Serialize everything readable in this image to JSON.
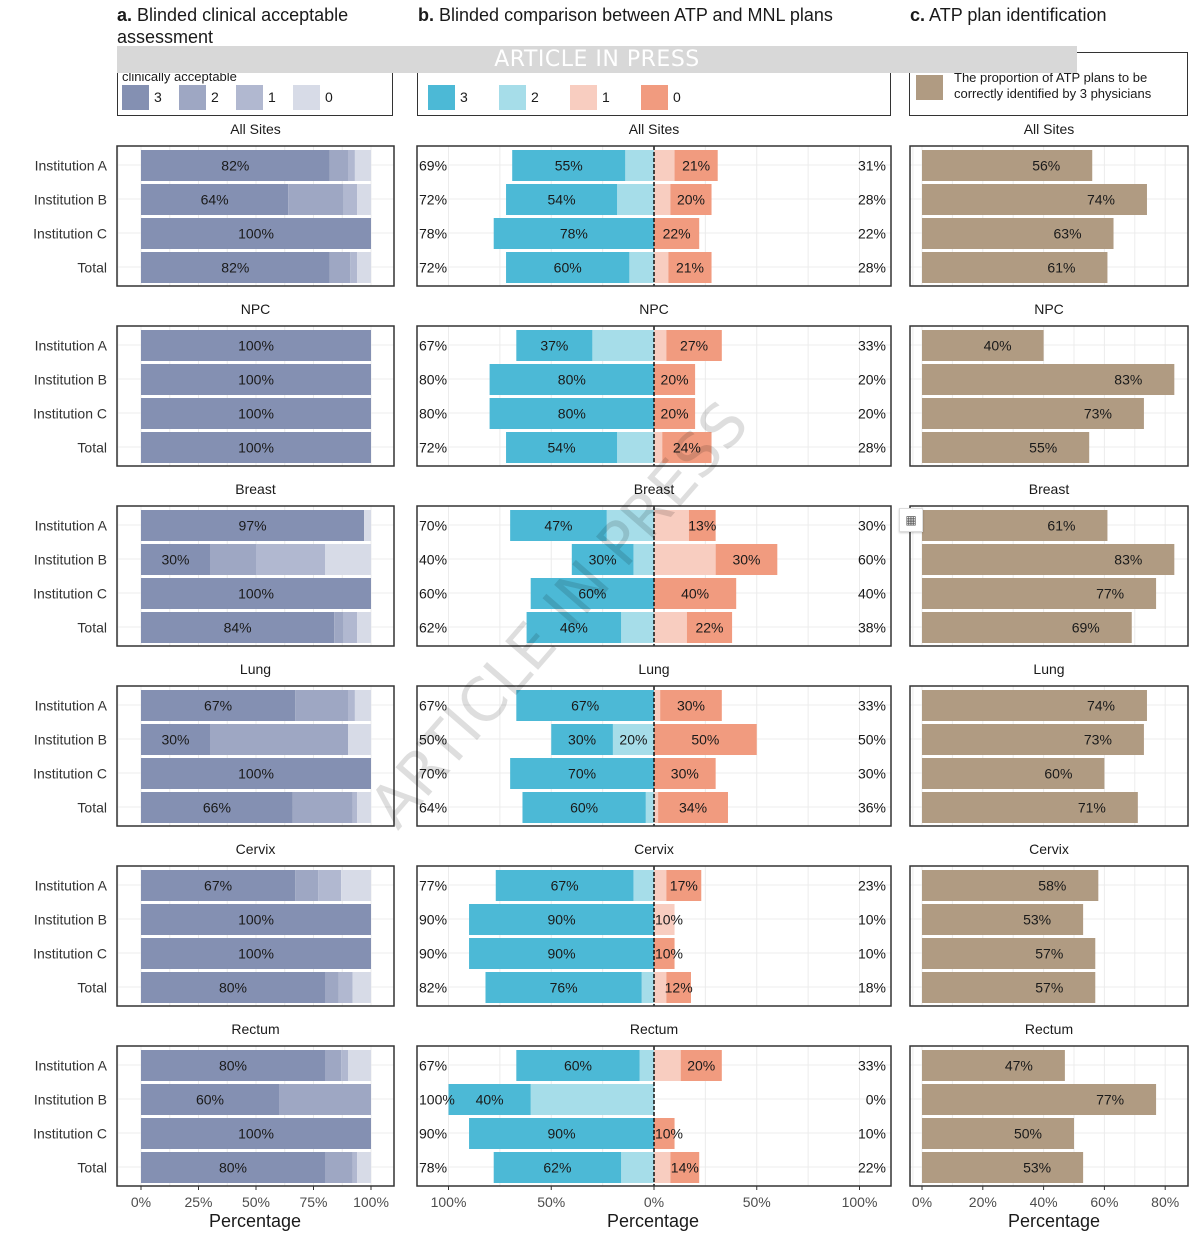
{
  "banner": "ARTICLE IN PRESS",
  "watermark": "ARTICLE IN PRESS",
  "panels": {
    "a": {
      "letter": "a.",
      "title": "Blinded clinical acceptable assessment",
      "legend_title": "clinically acceptable",
      "legend": [
        {
          "label": "3",
          "color": "#8490b2"
        },
        {
          "label": "2",
          "color": "#9ea7c3"
        },
        {
          "label": "1",
          "color": "#b1b8d0"
        },
        {
          "label": "0",
          "color": "#d7dbe7"
        }
      ],
      "xlabel": "Percentage",
      "ticks": [
        "0%",
        "25%",
        "50%",
        "75%",
        "100%"
      ]
    },
    "b": {
      "letter": "b.",
      "title": "Blinded comparison between ATP and MNL plans",
      "legend": [
        {
          "label": "3",
          "color": "#4cb9d6"
        },
        {
          "label": "2",
          "color": "#a6dde9"
        },
        {
          "label": "1",
          "color": "#f8cdc0"
        },
        {
          "label": "0",
          "color": "#f19b7f"
        }
      ],
      "xlabel": "Percentage",
      "ticks": [
        "100%",
        "50%",
        "0%",
        "50%",
        "100%"
      ]
    },
    "c": {
      "letter": "c.",
      "title": "ATP plan identification",
      "legend": [
        {
          "label": "The proportion of ATP plans to be correctly identified by 3 physicians",
          "color": "#b09b82"
        }
      ],
      "xlabel": "Percentage",
      "ticks": [
        "0%",
        "20%",
        "40%",
        "60%",
        "80%"
      ]
    }
  },
  "chart_data": [
    {
      "type": "bar",
      "title": "a. Blinded clinical acceptable assessment",
      "xlabel": "Percentage",
      "xlim": [
        0,
        100
      ],
      "categories": [
        "Institution A",
        "Institution B",
        "Institution C",
        "Total"
      ],
      "stack_levels": [
        "3",
        "2",
        "1",
        "0"
      ],
      "facets": [
        {
          "name": "All Sites",
          "rows": [
            [
              82,
              8,
              3,
              7
            ],
            [
              64,
              24,
              6,
              6
            ],
            [
              100,
              0,
              0,
              0
            ],
            [
              82,
              9,
              3,
              6
            ]
          ],
          "labels": [
            "82%",
            "64%",
            "100%",
            "82%"
          ]
        },
        {
          "name": "NPC",
          "rows": [
            [
              100,
              0,
              0,
              0
            ],
            [
              100,
              0,
              0,
              0
            ],
            [
              100,
              0,
              0,
              0
            ],
            [
              100,
              0,
              0,
              0
            ]
          ],
          "labels": [
            "100%",
            "100%",
            "100%",
            "100%"
          ]
        },
        {
          "name": "Breast",
          "rows": [
            [
              97,
              0,
              0,
              3
            ],
            [
              30,
              20,
              30,
              20
            ],
            [
              100,
              0,
              0,
              0
            ],
            [
              84,
              4,
              6,
              6
            ]
          ],
          "labels": [
            "97%",
            "30%",
            "100%",
            "84%"
          ]
        },
        {
          "name": "Lung",
          "rows": [
            [
              67,
              23,
              3,
              7
            ],
            [
              30,
              60,
              0,
              10
            ],
            [
              100,
              0,
              0,
              0
            ],
            [
              66,
              26,
              2,
              6
            ]
          ],
          "labels": [
            "67%",
            "30%",
            "100%",
            "66%"
          ]
        },
        {
          "name": "Cervix",
          "rows": [
            [
              67,
              10,
              10,
              13
            ],
            [
              100,
              0,
              0,
              0
            ],
            [
              100,
              0,
              0,
              0
            ],
            [
              80,
              6,
              6,
              8
            ]
          ],
          "labels": [
            "67%",
            "100%",
            "100%",
            "80%"
          ]
        },
        {
          "name": "Rectum",
          "rows": [
            [
              80,
              7,
              3,
              10
            ],
            [
              60,
              40,
              0,
              0
            ],
            [
              100,
              0,
              0,
              0
            ],
            [
              80,
              12,
              2,
              6
            ]
          ],
          "labels": [
            "80%",
            "60%",
            "100%",
            "80%"
          ]
        }
      ]
    },
    {
      "type": "bar",
      "title": "b. Blinded comparison between ATP and MNL plans",
      "xlabel": "Percentage",
      "xlim": [
        -100,
        100
      ],
      "categories": [
        "Institution A",
        "Institution B",
        "Institution C",
        "Total"
      ],
      "stack_levels": [
        "3",
        "2",
        "1",
        "0"
      ],
      "note": "levels 3 and 2 extend left of 0, levels 1 and 0 extend right",
      "facets": [
        {
          "name": "All Sites",
          "rows": [
            [
              55,
              14,
              10,
              21
            ],
            [
              54,
              18,
              8,
              20
            ],
            [
              78,
              0,
              0,
              22
            ],
            [
              60,
              12,
              7,
              21
            ]
          ],
          "left_totals": [
            "69%",
            "72%",
            "78%",
            "72%"
          ],
          "right_totals": [
            "31%",
            "28%",
            "22%",
            "28%"
          ],
          "labels3": [
            "55%",
            "54%",
            "78%",
            "60%"
          ],
          "labels2": [
            "",
            "",
            "",
            ""
          ],
          "labels1": [
            "",
            "",
            "",
            ""
          ],
          "labels0": [
            "21%",
            "20%",
            "22%",
            "21%"
          ]
        },
        {
          "name": "NPC",
          "rows": [
            [
              37,
              30,
              6,
              27
            ],
            [
              80,
              0,
              0,
              20
            ],
            [
              80,
              0,
              0,
              20
            ],
            [
              54,
              18,
              4,
              24
            ]
          ],
          "left_totals": [
            "67%",
            "80%",
            "80%",
            "72%"
          ],
          "right_totals": [
            "33%",
            "20%",
            "20%",
            "28%"
          ],
          "labels3": [
            "37%",
            "80%",
            "80%",
            "54%"
          ],
          "labels2": [
            "",
            "",
            "",
            ""
          ],
          "labels1": [
            "",
            "",
            "",
            ""
          ],
          "labels0": [
            "27%",
            "20%",
            "20%",
            "24%"
          ]
        },
        {
          "name": "Breast",
          "rows": [
            [
              47,
              23,
              17,
              13
            ],
            [
              30,
              10,
              30,
              30
            ],
            [
              60,
              0,
              0,
              40
            ],
            [
              46,
              16,
              16,
              22
            ]
          ],
          "left_totals": [
            "70%",
            "40%",
            "60%",
            "62%"
          ],
          "right_totals": [
            "30%",
            "60%",
            "40%",
            "38%"
          ],
          "labels3": [
            "47%",
            "30%",
            "60%",
            "46%"
          ],
          "labels2": [
            "",
            "",
            "",
            ""
          ],
          "labels1": [
            "",
            "",
            "",
            ""
          ],
          "labels0": [
            "13%",
            "30%",
            "40%",
            "22%"
          ]
        },
        {
          "name": "Lung",
          "rows": [
            [
              67,
              0,
              3,
              30
            ],
            [
              30,
              20,
              0,
              50
            ],
            [
              70,
              0,
              0,
              30
            ],
            [
              60,
              4,
              2,
              34
            ]
          ],
          "left_totals": [
            "67%",
            "50%",
            "70%",
            "64%"
          ],
          "right_totals": [
            "33%",
            "50%",
            "30%",
            "36%"
          ],
          "labels3": [
            "67%",
            "30%",
            "70%",
            "60%"
          ],
          "labels2": [
            "",
            "20%",
            "",
            ""
          ],
          "labels1": [
            "",
            "",
            "",
            ""
          ],
          "labels0": [
            "30%",
            "50%",
            "30%",
            "34%"
          ]
        },
        {
          "name": "Cervix",
          "rows": [
            [
              67,
              10,
              6,
              17
            ],
            [
              90,
              0,
              10,
              0
            ],
            [
              90,
              0,
              0,
              10
            ],
            [
              76,
              6,
              6,
              12
            ]
          ],
          "left_totals": [
            "77%",
            "90%",
            "90%",
            "82%"
          ],
          "right_totals": [
            "23%",
            "10%",
            "10%",
            "18%"
          ],
          "labels3": [
            "67%",
            "90%",
            "90%",
            "76%"
          ],
          "labels2": [
            "",
            "",
            "",
            ""
          ],
          "labels1": [
            "",
            "10%",
            "",
            ""
          ],
          "labels0": [
            "17%",
            "",
            "10%",
            "12%"
          ]
        },
        {
          "name": "Rectum",
          "rows": [
            [
              60,
              7,
              13,
              20
            ],
            [
              40,
              60,
              0,
              0
            ],
            [
              90,
              0,
              0,
              10
            ],
            [
              62,
              16,
              8,
              14
            ]
          ],
          "left_totals": [
            "67%",
            "100%",
            "90%",
            "78%"
          ],
          "right_totals": [
            "33%",
            "0%",
            "10%",
            "22%"
          ],
          "labels3": [
            "60%",
            "40%",
            "90%",
            "62%"
          ],
          "labels2": [
            "",
            "",
            "",
            ""
          ],
          "labels1": [
            "",
            "",
            "",
            ""
          ],
          "labels0": [
            "20%",
            "",
            "10%",
            "14%"
          ]
        }
      ]
    },
    {
      "type": "bar",
      "title": "c. ATP plan identification",
      "xlabel": "Percentage",
      "xlim": [
        0,
        85
      ],
      "categories": [
        "Institution A",
        "Institution B",
        "Institution C",
        "Total"
      ],
      "facets": [
        {
          "name": "All Sites",
          "values": [
            56,
            74,
            63,
            61
          ]
        },
        {
          "name": "NPC",
          "values": [
            40,
            83,
            73,
            55
          ]
        },
        {
          "name": "Breast",
          "values": [
            61,
            83,
            77,
            69
          ]
        },
        {
          "name": "Lung",
          "values": [
            74,
            73,
            60,
            71
          ]
        },
        {
          "name": "Cervix",
          "values": [
            58,
            53,
            57,
            57
          ]
        },
        {
          "name": "Rectum",
          "values": [
            47,
            77,
            50,
            53
          ]
        }
      ]
    }
  ]
}
